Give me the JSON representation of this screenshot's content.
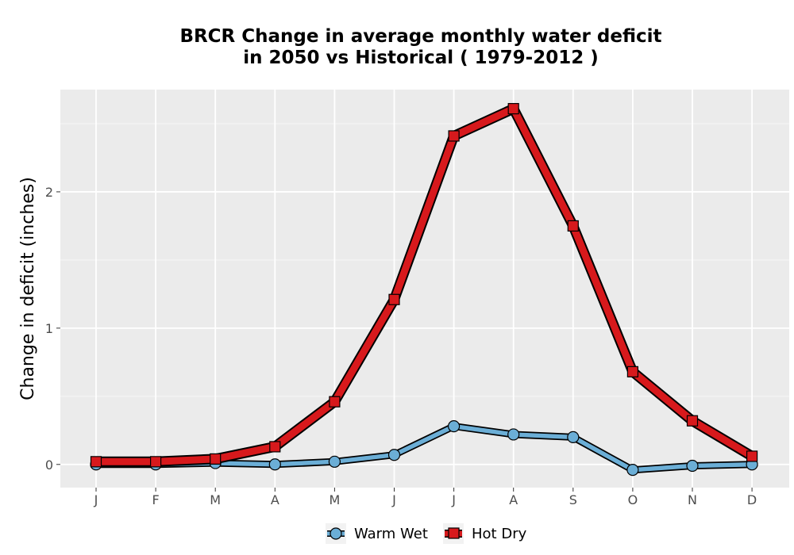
{
  "chart_data": {
    "type": "line",
    "title_line1": "BRCR  Change in average monthly water deficit",
    "title_line2": "in 2050 vs Historical ( 1979-2012 )",
    "ylabel": "Change in deficit (inches)",
    "xlabel": "",
    "categories": [
      "J",
      "F",
      "M",
      "A",
      "M",
      "J",
      "J",
      "A",
      "S",
      "O",
      "N",
      "D"
    ],
    "y_ticks": [
      "0",
      "1",
      "2"
    ],
    "ylim": [
      -0.17,
      2.75
    ],
    "grid": true,
    "legend_position": "bottom",
    "series": [
      {
        "name": "Warm Wet",
        "color": "#6baed6",
        "marker": "circle",
        "values": [
          0.0,
          0.0,
          0.01,
          0.0,
          0.02,
          0.07,
          0.28,
          0.22,
          0.2,
          -0.04,
          -0.01,
          0.0
        ]
      },
      {
        "name": "Hot Dry",
        "color": "#d7191c",
        "marker": "square",
        "values": [
          0.02,
          0.02,
          0.04,
          0.13,
          0.46,
          1.21,
          2.41,
          2.61,
          1.75,
          0.68,
          0.32,
          0.06
        ]
      }
    ]
  }
}
